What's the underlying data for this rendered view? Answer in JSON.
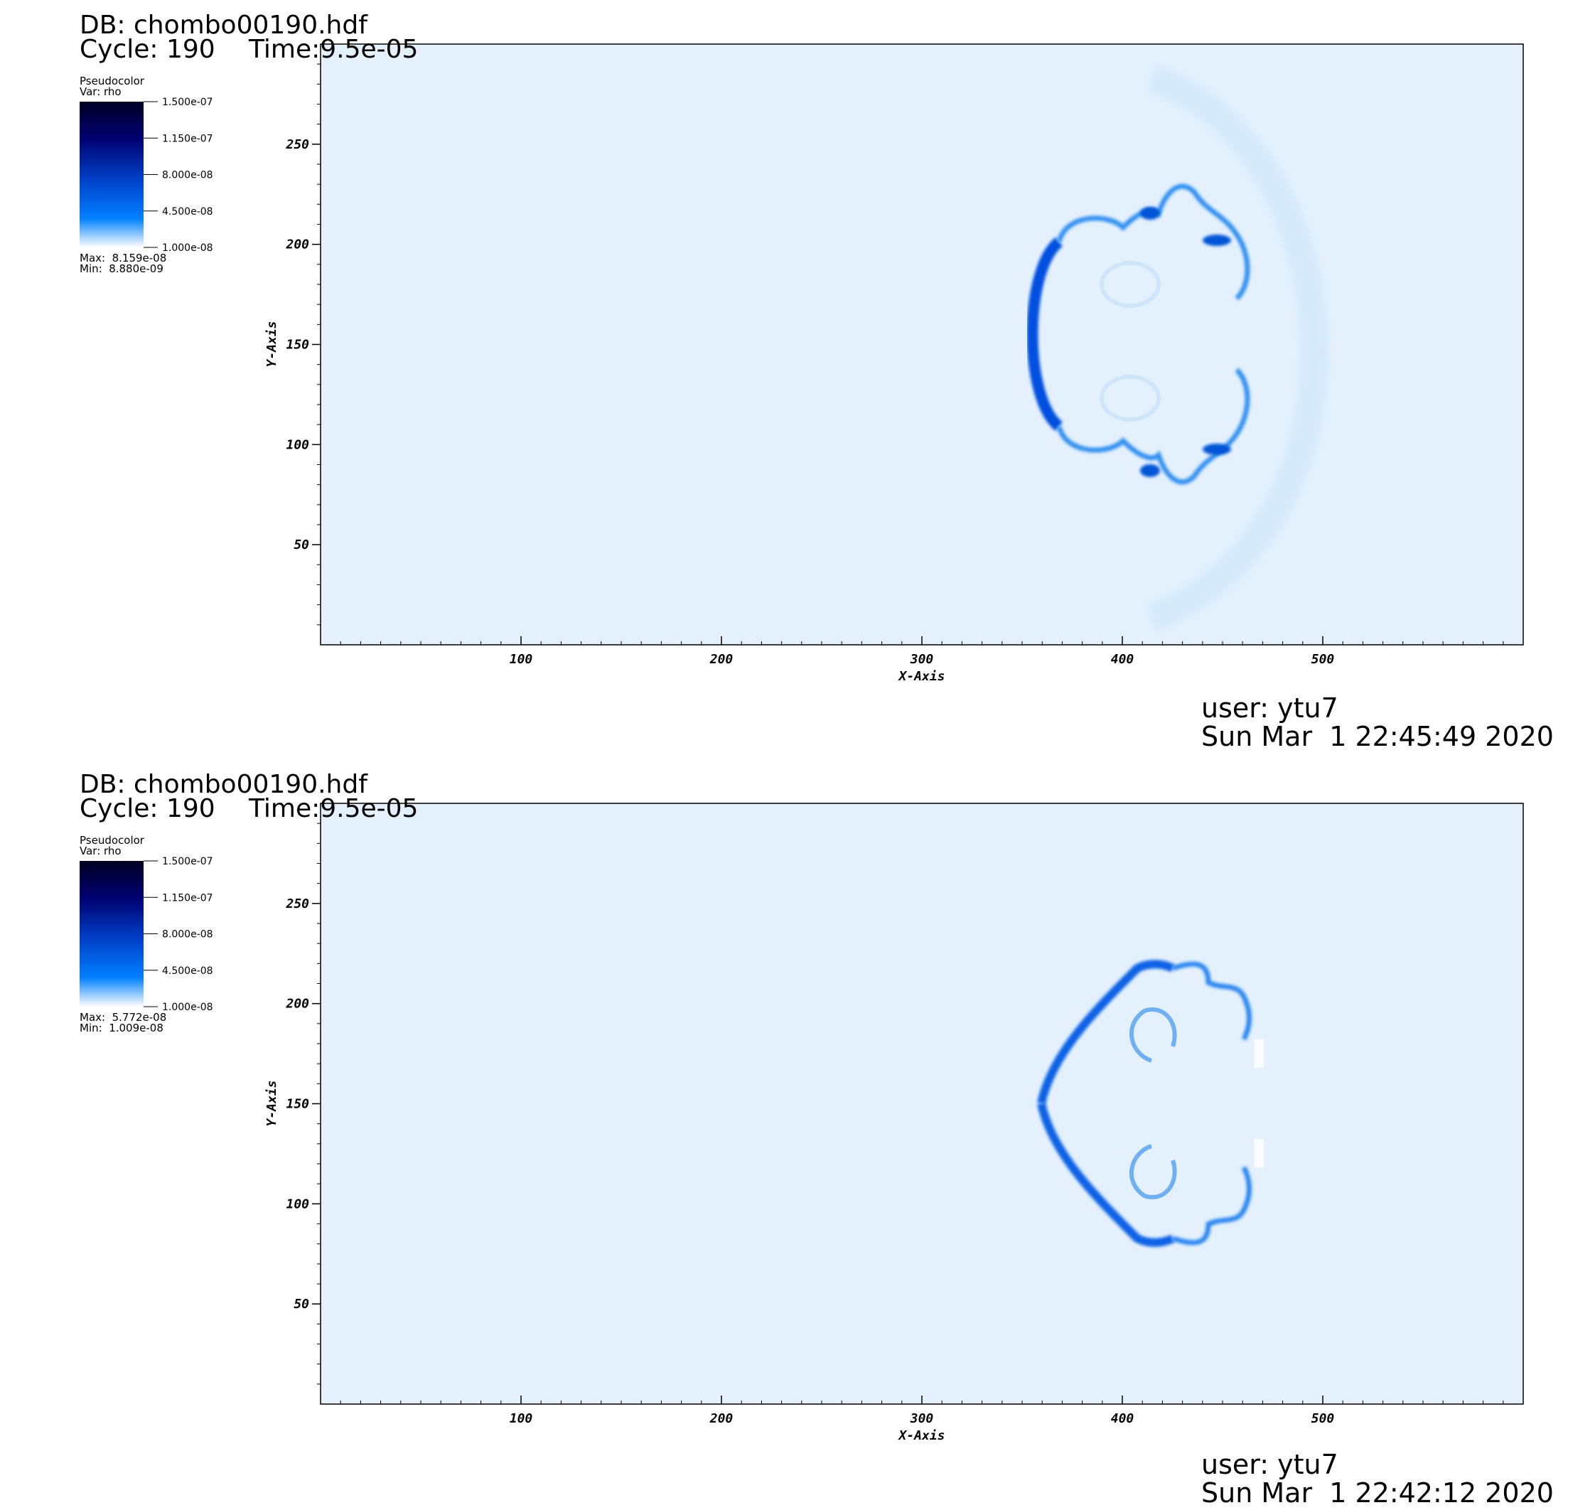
{
  "colors": {
    "background": "#e4f1fd",
    "colormap": [
      "#ffffff",
      "#0066ff",
      "#000066",
      "#000022"
    ],
    "frame": "#000000"
  },
  "panels": [
    {
      "db_label": "DB: chombo00190.hdf",
      "cycle_label": "Cycle: 190",
      "time_label": "Time:9.5e-05",
      "legend": {
        "plot_type": "Pseudocolor",
        "var_label": "Var: rho",
        "ticks": [
          "1.500e-07",
          "1.150e-07",
          "8.000e-08",
          "4.500e-08",
          "1.000e-08"
        ],
        "max_label": "Max:  8.159e-08",
        "min_label": "Min:  8.880e-09"
      },
      "user_label": "user: ytu7",
      "date_label": "Sun Mar  1 22:45:49 2020"
    },
    {
      "db_label": "DB: chombo00190.hdf",
      "cycle_label": "Cycle: 190",
      "time_label": "Time:9.5e-05",
      "legend": {
        "plot_type": "Pseudocolor",
        "var_label": "Var: rho",
        "ticks": [
          "1.500e-07",
          "1.150e-07",
          "8.000e-08",
          "4.500e-08",
          "1.000e-08"
        ],
        "max_label": "Max:  5.772e-08",
        "min_label": "Min:  1.009e-08"
      },
      "user_label": "user: ytu7",
      "date_label": "Sun Mar  1 22:42:12 2020"
    }
  ],
  "chart_data": [
    {
      "type": "heatmap",
      "variable": "rho",
      "xlabel": "X-Axis",
      "ylabel": "Y-Axis",
      "xlim": [
        0,
        600
      ],
      "ylim": [
        0,
        300
      ],
      "xticks": [
        "100",
        "200",
        "300",
        "400",
        "500"
      ],
      "yticks": [
        "50",
        "100",
        "150",
        "200",
        "250"
      ],
      "xtick_values": [
        100,
        200,
        300,
        400,
        500
      ],
      "ytick_values": [
        50,
        100,
        150,
        200,
        250
      ],
      "color_range": [
        1e-08,
        1.5e-07
      ],
      "data_max": 8.159e-08,
      "data_min": 8.88e-09
    },
    {
      "type": "heatmap",
      "variable": "rho",
      "xlabel": "X-Axis",
      "ylabel": "Y-Axis",
      "xlim": [
        0,
        600
      ],
      "ylim": [
        0,
        300
      ],
      "xticks": [
        "100",
        "200",
        "300",
        "400",
        "500"
      ],
      "yticks": [
        "50",
        "100",
        "150",
        "200",
        "250"
      ],
      "xtick_values": [
        100,
        200,
        300,
        400,
        500
      ],
      "ytick_values": [
        50,
        100,
        150,
        200,
        250
      ],
      "color_range": [
        1e-08,
        1.5e-07
      ],
      "data_max": 5.772e-08,
      "data_min": 1.009e-08
    }
  ]
}
